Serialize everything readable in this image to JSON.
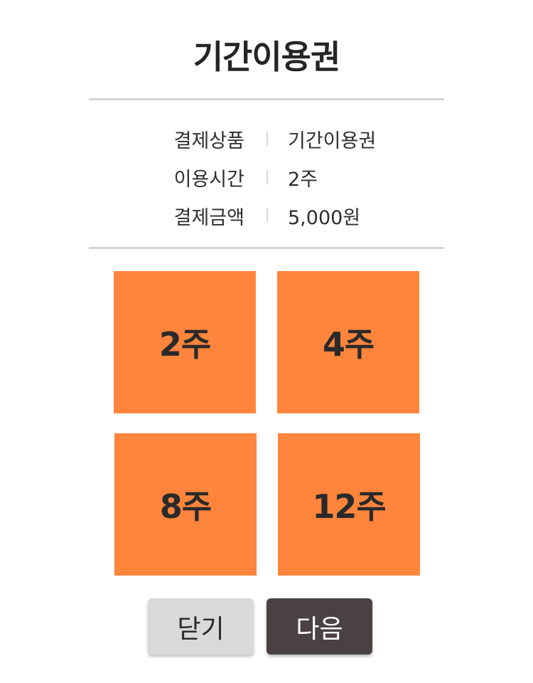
{
  "header": {
    "title": "기간이용권"
  },
  "summary": {
    "rows": [
      {
        "label": "결제상품",
        "value": "기간이용권"
      },
      {
        "label": "이용시간",
        "value": "2주"
      },
      {
        "label": "결제금액",
        "value": "5,000원"
      }
    ]
  },
  "options": [
    {
      "label": "2주"
    },
    {
      "label": "4주"
    },
    {
      "label": "8주"
    },
    {
      "label": "12주"
    }
  ],
  "buttons": {
    "close_label": "닫기",
    "next_label": "다음"
  },
  "colors": {
    "tile": "#ff853c",
    "close_button": "#d9d9d9",
    "next_button": "#4a4242",
    "divider": "#d6d6d6"
  }
}
